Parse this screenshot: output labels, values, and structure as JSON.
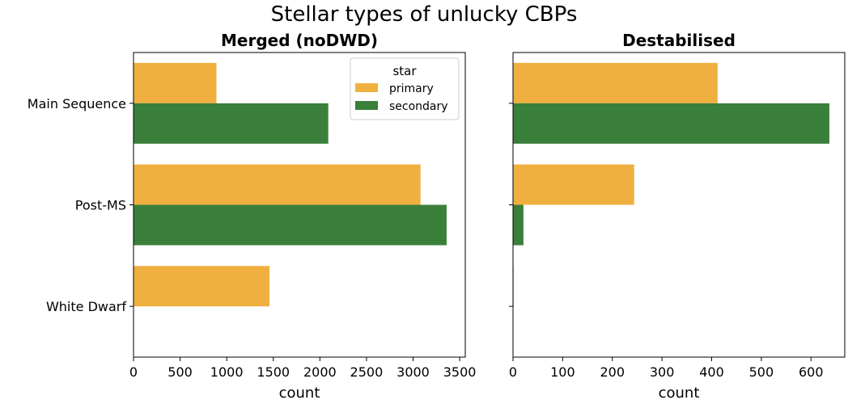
{
  "figure": {
    "title": "Stellar types of unlucky CBPs"
  },
  "colors": {
    "primary": "#f0b040",
    "secondary": "#3a7f3a"
  },
  "chart_data": [
    {
      "type": "bar",
      "orientation": "horizontal",
      "title": "Merged (noDWD)",
      "xlabel": "count",
      "ylabel": "",
      "categories": [
        "Main Sequence",
        "Post-MS",
        "White Dwarf"
      ],
      "series": [
        {
          "name": "primary",
          "values": [
            890,
            3080,
            1460
          ]
        },
        {
          "name": "secondary",
          "values": [
            2090,
            3360,
            0
          ]
        }
      ],
      "xlim": [
        0,
        3560
      ],
      "xticks": [
        0,
        500,
        1000,
        1500,
        2000,
        2500,
        3000,
        3500
      ],
      "grid": false,
      "legend": {
        "title": "star",
        "placement": "top-right",
        "entries": [
          "primary",
          "secondary"
        ]
      }
    },
    {
      "type": "bar",
      "orientation": "horizontal",
      "title": "Destabilised",
      "xlabel": "count",
      "ylabel": "",
      "categories": [
        "Main Sequence",
        "Post-MS",
        "White Dwarf"
      ],
      "series": [
        {
          "name": "primary",
          "values": [
            412,
            244,
            1
          ]
        },
        {
          "name": "secondary",
          "values": [
            637,
            21,
            0
          ]
        }
      ],
      "xlim": [
        0,
        668
      ],
      "xticks": [
        0,
        100,
        200,
        300,
        400,
        500,
        600
      ],
      "grid": false,
      "shared_y": true
    }
  ]
}
